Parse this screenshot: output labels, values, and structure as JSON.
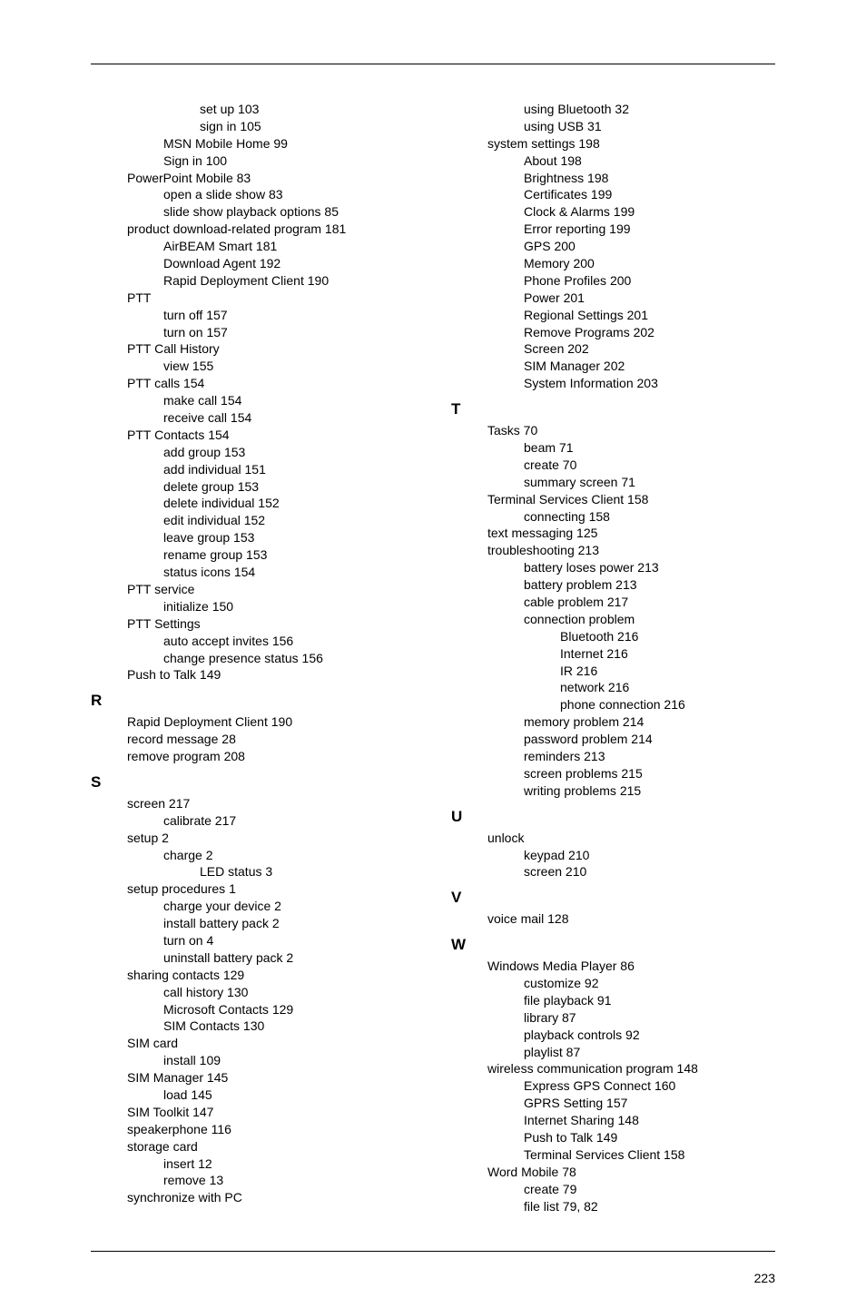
{
  "pageNumber": "223",
  "col1": [
    {
      "t": "set up",
      "p": "103",
      "i": 3
    },
    {
      "t": "sign in",
      "p": "105",
      "i": 3
    },
    {
      "t": "MSN Mobile Home",
      "p": "99",
      "i": 2
    },
    {
      "t": "Sign in",
      "p": "100",
      "i": 2
    },
    {
      "t": "PowerPoint Mobile",
      "p": "83",
      "i": 1
    },
    {
      "t": "open a slide show",
      "p": "83",
      "i": 2
    },
    {
      "t": "slide show playback options",
      "p": "85",
      "i": 2
    },
    {
      "t": "product download-related program",
      "p": "181",
      "i": 1
    },
    {
      "t": "AirBEAM Smart",
      "p": "181",
      "i": 2
    },
    {
      "t": "Download Agent",
      "p": "192",
      "i": 2
    },
    {
      "t": "Rapid Deployment Client",
      "p": "190",
      "i": 2
    },
    {
      "t": "PTT",
      "p": "",
      "i": 1
    },
    {
      "t": "turn off",
      "p": "157",
      "i": 2
    },
    {
      "t": "turn on",
      "p": "157",
      "i": 2
    },
    {
      "t": "PTT Call History",
      "p": "",
      "i": 1
    },
    {
      "t": "view",
      "p": "155",
      "i": 2
    },
    {
      "t": "PTT calls",
      "p": "154",
      "i": 1
    },
    {
      "t": "make call",
      "p": "154",
      "i": 2
    },
    {
      "t": "receive call",
      "p": "154",
      "i": 2
    },
    {
      "t": "PTT Contacts",
      "p": "154",
      "i": 1
    },
    {
      "t": "add group",
      "p": "153",
      "i": 2
    },
    {
      "t": "add individual",
      "p": "151",
      "i": 2
    },
    {
      "t": "delete group",
      "p": "153",
      "i": 2
    },
    {
      "t": "delete individual",
      "p": "152",
      "i": 2
    },
    {
      "t": "edit individual",
      "p": "152",
      "i": 2
    },
    {
      "t": "leave group",
      "p": "153",
      "i": 2
    },
    {
      "t": "rename group",
      "p": "153",
      "i": 2
    },
    {
      "t": "status icons",
      "p": "154",
      "i": 2
    },
    {
      "t": "PTT service",
      "p": "",
      "i": 1
    },
    {
      "t": "initialize",
      "p": "150",
      "i": 2
    },
    {
      "t": "PTT Settings",
      "p": "",
      "i": 1
    },
    {
      "t": "auto accept invites",
      "p": "156",
      "i": 2
    },
    {
      "t": "change presence status",
      "p": "156",
      "i": 2
    },
    {
      "t": "Push to Talk",
      "p": "149",
      "i": 1
    },
    {
      "letter": "R"
    },
    {
      "t": "Rapid Deployment Client",
      "p": "190",
      "i": 1
    },
    {
      "t": "record message",
      "p": "28",
      "i": 1
    },
    {
      "t": "remove program",
      "p": "208",
      "i": 1
    },
    {
      "letter": "S"
    },
    {
      "t": "screen",
      "p": "217",
      "i": 1
    },
    {
      "t": "calibrate",
      "p": "217",
      "i": 2
    },
    {
      "t": "setup",
      "p": "2",
      "i": 1
    },
    {
      "t": "charge",
      "p": "2",
      "i": 2
    },
    {
      "t": "LED status",
      "p": "3",
      "i": 3
    },
    {
      "t": "setup procedures",
      "p": "1",
      "i": 1
    },
    {
      "t": "charge your device",
      "p": "2",
      "i": 2
    },
    {
      "t": "install battery pack",
      "p": "2",
      "i": 2
    },
    {
      "t": "turn on",
      "p": "4",
      "i": 2
    },
    {
      "t": "uninstall battery pack",
      "p": "2",
      "i": 2
    },
    {
      "t": "sharing contacts",
      "p": "129",
      "i": 1
    },
    {
      "t": "call history",
      "p": "130",
      "i": 2
    },
    {
      "t": "Microsoft Contacts",
      "p": "129",
      "i": 2
    },
    {
      "t": "SIM Contacts",
      "p": "130",
      "i": 2
    },
    {
      "t": "SIM card",
      "p": "",
      "i": 1
    },
    {
      "t": "install",
      "p": "109",
      "i": 2
    },
    {
      "t": "SIM Manager",
      "p": "145",
      "i": 1
    },
    {
      "t": "load",
      "p": "145",
      "i": 2
    },
    {
      "t": "SIM Toolkit",
      "p": "147",
      "i": 1
    },
    {
      "t": "speakerphone",
      "p": "116",
      "i": 1
    },
    {
      "t": "storage card",
      "p": "",
      "i": 1
    },
    {
      "t": "insert",
      "p": "12",
      "i": 2
    },
    {
      "t": "remove",
      "p": "13",
      "i": 2
    },
    {
      "t": "synchronize with PC",
      "p": "",
      "i": 1
    }
  ],
  "col2": [
    {
      "t": "using Bluetooth",
      "p": "32",
      "i": 2
    },
    {
      "t": "using USB",
      "p": "31",
      "i": 2
    },
    {
      "t": "system settings",
      "p": "198",
      "i": 1
    },
    {
      "t": "About",
      "p": "198",
      "i": 2
    },
    {
      "t": "Brightness",
      "p": "198",
      "i": 2
    },
    {
      "t": "Certificates",
      "p": "199",
      "i": 2
    },
    {
      "t": "Clock & Alarms",
      "p": "199",
      "i": 2
    },
    {
      "t": "Error reporting",
      "p": "199",
      "i": 2
    },
    {
      "t": "GPS",
      "p": "200",
      "i": 2
    },
    {
      "t": "Memory",
      "p": "200",
      "i": 2
    },
    {
      "t": "Phone Profiles",
      "p": "200",
      "i": 2
    },
    {
      "t": "Power",
      "p": "201",
      "i": 2
    },
    {
      "t": "Regional Settings",
      "p": "201",
      "i": 2
    },
    {
      "t": "Remove Programs",
      "p": "202",
      "i": 2
    },
    {
      "t": "Screen",
      "p": "202",
      "i": 2
    },
    {
      "t": "SIM Manager",
      "p": "202",
      "i": 2
    },
    {
      "t": "System Information",
      "p": "203",
      "i": 2
    },
    {
      "letter": "T"
    },
    {
      "t": "Tasks",
      "p": "70",
      "i": 1
    },
    {
      "t": "beam",
      "p": "71",
      "i": 2
    },
    {
      "t": "create",
      "p": "70",
      "i": 2
    },
    {
      "t": "summary screen",
      "p": "71",
      "i": 2
    },
    {
      "t": "Terminal Services Client",
      "p": "158",
      "i": 1
    },
    {
      "t": "connecting",
      "p": "158",
      "i": 2
    },
    {
      "t": "text messaging",
      "p": "125",
      "i": 1
    },
    {
      "t": "troubleshooting",
      "p": "213",
      "i": 1
    },
    {
      "t": "battery loses power",
      "p": "213",
      "i": 2
    },
    {
      "t": "battery problem",
      "p": "213",
      "i": 2
    },
    {
      "t": "cable problem",
      "p": "217",
      "i": 2
    },
    {
      "t": "connection problem",
      "p": "",
      "i": 2
    },
    {
      "t": "Bluetooth",
      "p": "216",
      "i": 3
    },
    {
      "t": "Internet",
      "p": "216",
      "i": 3
    },
    {
      "t": "IR",
      "p": "216",
      "i": 3
    },
    {
      "t": "network",
      "p": "216",
      "i": 3
    },
    {
      "t": "phone connection",
      "p": "216",
      "i": 3
    },
    {
      "t": "memory problem",
      "p": "214",
      "i": 2
    },
    {
      "t": "password problem",
      "p": "214",
      "i": 2
    },
    {
      "t": "reminders",
      "p": "213",
      "i": 2
    },
    {
      "t": "screen problems",
      "p": "215",
      "i": 2
    },
    {
      "t": "writing problems",
      "p": "215",
      "i": 2
    },
    {
      "letter": "U"
    },
    {
      "t": "unlock",
      "p": "",
      "i": 1
    },
    {
      "t": "keypad",
      "p": "210",
      "i": 2
    },
    {
      "t": "screen",
      "p": "210",
      "i": 2
    },
    {
      "letter": "V"
    },
    {
      "t": "voice mail",
      "p": "128",
      "i": 1
    },
    {
      "letter": "W"
    },
    {
      "t": "Windows Media Player",
      "p": "86",
      "i": 1
    },
    {
      "t": "customize",
      "p": "92",
      "i": 2
    },
    {
      "t": "file playback",
      "p": "91",
      "i": 2
    },
    {
      "t": "library",
      "p": "87",
      "i": 2
    },
    {
      "t": "playback controls",
      "p": "92",
      "i": 2
    },
    {
      "t": "playlist",
      "p": "87",
      "i": 2
    },
    {
      "t": "wireless communication program",
      "p": "148",
      "i": 1
    },
    {
      "t": "Express GPS Connect",
      "p": "160",
      "i": 2
    },
    {
      "t": "GPRS Setting",
      "p": "157",
      "i": 2
    },
    {
      "t": "Internet Sharing",
      "p": "148",
      "i": 2
    },
    {
      "t": "Push to Talk",
      "p": "149",
      "i": 2
    },
    {
      "t": "Terminal Services Client",
      "p": "158",
      "i": 2
    },
    {
      "t": "Word Mobile",
      "p": "78",
      "i": 1
    },
    {
      "t": "create",
      "p": "79",
      "i": 2
    },
    {
      "t": "file list",
      "p": "79, 82",
      "i": 2
    }
  ]
}
